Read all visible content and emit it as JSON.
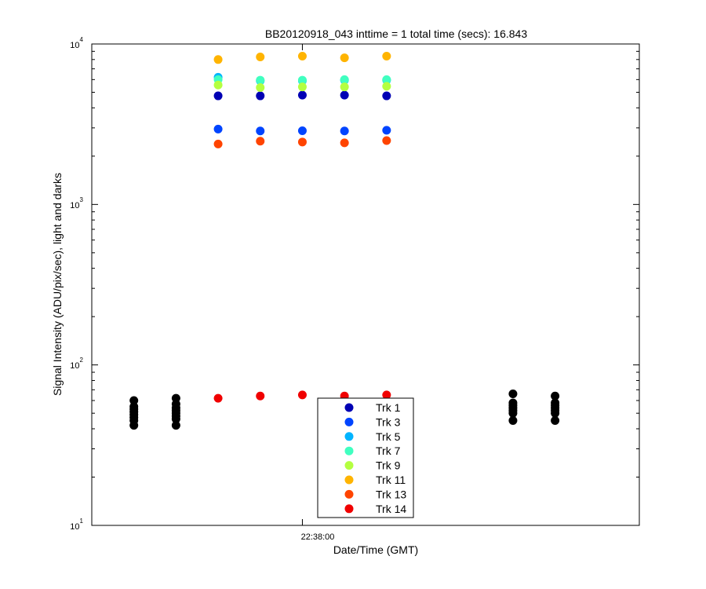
{
  "chart_data": {
    "type": "scatter",
    "title": "BB20120918_043 inttime = 1 total time (secs): 16.843",
    "xlabel": "Date/Time (GMT)",
    "ylabel": "Signal Intensity (ADU/pix/sec), light and darks",
    "x_ticks": [
      "22:38:00"
    ],
    "y_scale": "log",
    "ylim": [
      10,
      10000
    ],
    "y_ticks": [
      {
        "base": "10",
        "exp": "1"
      },
      {
        "base": "10",
        "exp": "2"
      },
      {
        "base": "10",
        "exp": "3"
      },
      {
        "base": "10",
        "exp": "4"
      }
    ],
    "legend_position": "bottom-center",
    "light_x": [
      "22:37:48",
      "22:37:54",
      "22:38:00",
      "22:38:06",
      "22:38:12"
    ],
    "dark_x": [
      "22:37:36",
      "22:37:42",
      "22:38:30",
      "22:38:36"
    ],
    "series": [
      {
        "name": "Trk 1",
        "color": "#0000b4",
        "values": [
          4750,
          4750,
          4800,
          4800,
          4750
        ]
      },
      {
        "name": "Trk 3",
        "color": "#0044ff",
        "values": [
          2950,
          2870,
          2880,
          2870,
          2900
        ]
      },
      {
        "name": "Trk 5",
        "color": "#00b4ff",
        "values": [
          6200,
          5900,
          5900,
          5950,
          5950
        ]
      },
      {
        "name": "Trk 7",
        "color": "#40ffc0",
        "values": [
          6000,
          5950,
          5950,
          6000,
          6000
        ]
      },
      {
        "name": "Trk 9",
        "color": "#b4ff40",
        "values": [
          5550,
          5350,
          5400,
          5400,
          5450
        ]
      },
      {
        "name": "Trk 11",
        "color": "#ffb400",
        "values": [
          8000,
          8300,
          8400,
          8200,
          8400
        ]
      },
      {
        "name": "Trk 13",
        "color": "#ff4400",
        "values": [
          2380,
          2480,
          2450,
          2420,
          2500
        ]
      },
      {
        "name": "Trk 14",
        "color": "#f00000",
        "values": [
          62,
          64,
          65,
          64,
          65
        ]
      }
    ],
    "darks": {
      "color": "#000000",
      "groups": [
        [
          42,
          45,
          47,
          49,
          51,
          53,
          55,
          60
        ],
        [
          42,
          46,
          48,
          50,
          52,
          54,
          57,
          62
        ],
        [
          45,
          50,
          52,
          54,
          56,
          58,
          66
        ],
        [
          45,
          50,
          52,
          54,
          56,
          58,
          64
        ]
      ]
    }
  }
}
